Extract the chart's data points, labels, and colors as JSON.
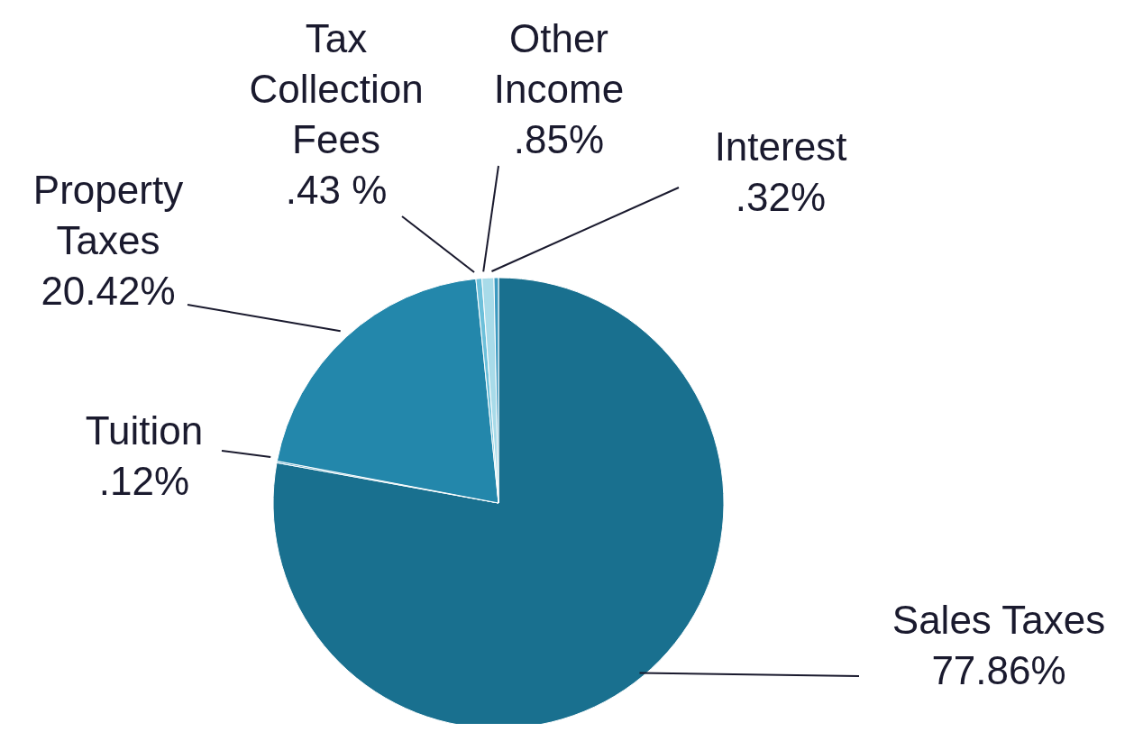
{
  "chart_data": {
    "type": "pie",
    "categories": [
      "Sales Taxes",
      "Tuition",
      "Property Taxes",
      "Tax Collection Fees",
      "Other Income",
      "Interest"
    ],
    "values": [
      77.86,
      0.12,
      20.42,
      0.43,
      0.85,
      0.32
    ],
    "value_labels": [
      "77.86%",
      ".12%",
      "20.42%",
      ".43 %",
      ".85%",
      ".32%"
    ],
    "colors": [
      "#19708f",
      "#4a9fc2",
      "#2387ab",
      "#6dc0da",
      "#a8dbe9",
      "#3c9ac0"
    ]
  }
}
